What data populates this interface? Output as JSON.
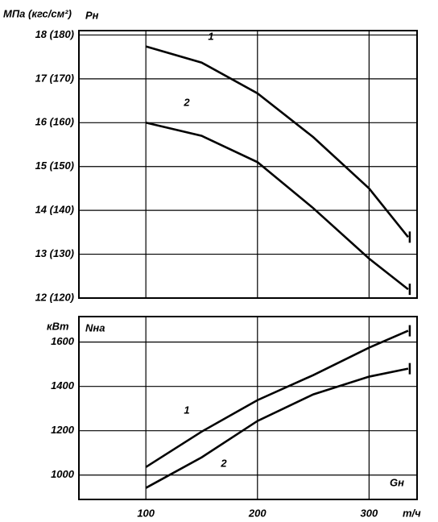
{
  "chart_data": [
    {
      "type": "line",
      "y_label": "МПа (кгс/см²)",
      "y_name": "Pн",
      "x": [
        100,
        150,
        200,
        250,
        300,
        335
      ],
      "series": [
        {
          "name": "1",
          "color": "#000000",
          "values": [
            17.74,
            17.37,
            16.67,
            15.67,
            14.5,
            13.39
          ]
        },
        {
          "name": "2",
          "color": "#000000",
          "values": [
            16.0,
            15.7,
            15.1,
            14.05,
            12.9,
            12.2
          ]
        }
      ],
      "xlim": [
        40,
        343
      ],
      "xticks": [
        100,
        200,
        300
      ],
      "xtick_labels": false,
      "ylim": [
        12,
        18.1
      ],
      "yticks": [
        {
          "value": 12,
          "label": "12 (120)"
        },
        {
          "value": 13,
          "label": "13 (130)"
        },
        {
          "value": 14,
          "label": "14 (140)"
        },
        {
          "value": 15,
          "label": "15 (150)"
        },
        {
          "value": 16,
          "label": "16 (160)"
        },
        {
          "value": 17,
          "label": "17 (170)"
        },
        {
          "value": 18,
          "label": "18 (180)"
        }
      ],
      "grid": true
    },
    {
      "type": "line",
      "y_label": "кВт",
      "y_name": "Nна",
      "x_name": "Gн",
      "x_unit": "т/ч",
      "x": [
        100,
        150,
        200,
        250,
        300,
        335
      ],
      "series": [
        {
          "name": "1",
          "color": "#000000",
          "values": [
            1036,
            1196,
            1338,
            1451,
            1575,
            1651
          ]
        },
        {
          "name": "2",
          "color": "#000000",
          "values": [
            942,
            1080,
            1244,
            1364,
            1444,
            1480
          ]
        }
      ],
      "xlim": [
        40,
        343
      ],
      "xticks": [
        100,
        200,
        300
      ],
      "xtick_labels": true,
      "ylim": [
        890,
        1715
      ],
      "yticks": [
        1000,
        1200,
        1400,
        1600
      ],
      "grid": true
    }
  ]
}
